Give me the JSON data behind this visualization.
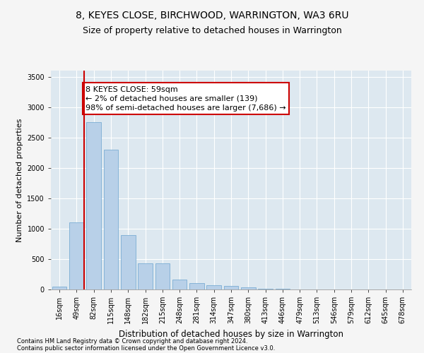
{
  "title": "8, KEYES CLOSE, BIRCHWOOD, WARRINGTON, WA3 6RU",
  "subtitle": "Size of property relative to detached houses in Warrington",
  "xlabel": "Distribution of detached houses by size in Warrington",
  "ylabel": "Number of detached properties",
  "categories": [
    "16sqm",
    "49sqm",
    "82sqm",
    "115sqm",
    "148sqm",
    "182sqm",
    "215sqm",
    "248sqm",
    "281sqm",
    "314sqm",
    "347sqm",
    "380sqm",
    "413sqm",
    "446sqm",
    "479sqm",
    "513sqm",
    "546sqm",
    "579sqm",
    "612sqm",
    "645sqm",
    "678sqm"
  ],
  "values": [
    50,
    1100,
    2750,
    2300,
    900,
    430,
    430,
    165,
    105,
    75,
    55,
    30,
    15,
    8,
    5,
    3,
    2,
    1,
    1,
    0,
    0
  ],
  "bar_color": "#b8d0e8",
  "bar_edge_color": "#7aadd4",
  "annotation_text": "8 KEYES CLOSE: 59sqm\n← 2% of detached houses are smaller (139)\n98% of semi-detached houses are larger (7,686) →",
  "annotation_box_color": "#ffffff",
  "annotation_box_edge": "#cc0000",
  "red_line_color": "#cc0000",
  "red_line_x": 1.42,
  "ylim": [
    0,
    3600
  ],
  "yticks": [
    0,
    500,
    1000,
    1500,
    2000,
    2500,
    3000,
    3500
  ],
  "background_color": "#dde8f0",
  "grid_color": "#ffffff",
  "footer_line1": "Contains HM Land Registry data © Crown copyright and database right 2024.",
  "footer_line2": "Contains public sector information licensed under the Open Government Licence v3.0.",
  "title_fontsize": 10,
  "subtitle_fontsize": 9,
  "xlabel_fontsize": 8.5,
  "ylabel_fontsize": 8,
  "tick_fontsize": 7,
  "annotation_fontsize": 8,
  "footer_fontsize": 6
}
